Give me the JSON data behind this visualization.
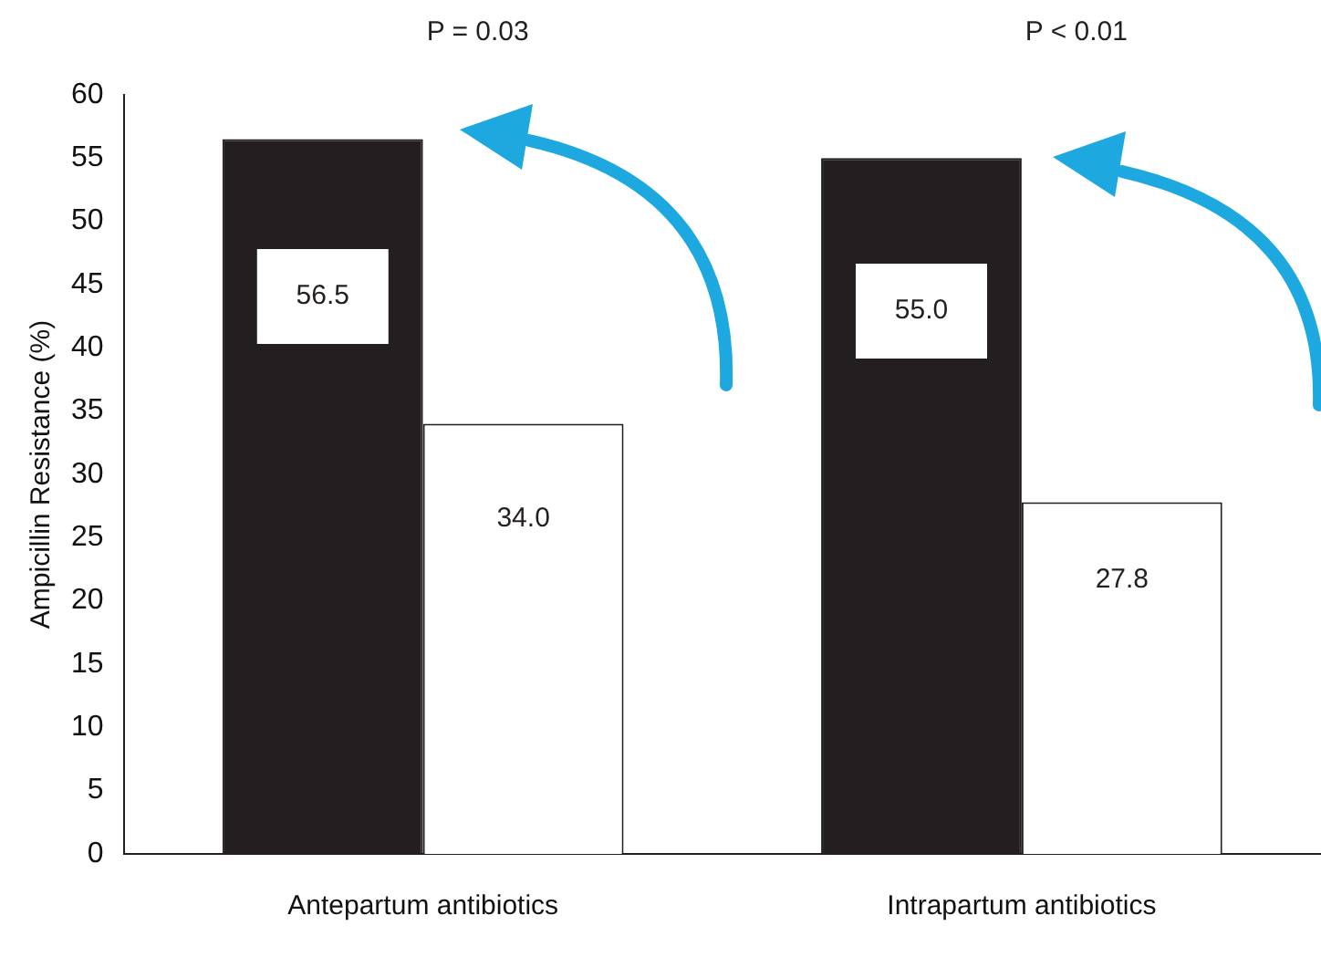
{
  "chart_data": {
    "type": "bar",
    "ylabel": "Ampicillin Resistance (%)",
    "categories": [
      "Antepartum antibiotics",
      "Intrapartum antibiotics"
    ],
    "series": [
      {
        "color": "#231f20",
        "values": [
          56.5,
          55.0
        ],
        "value_labels": [
          "56.5",
          "55.0"
        ]
      },
      {
        "color": "#ffffff",
        "values": [
          34.0,
          27.8
        ],
        "value_labels": [
          "34.0",
          "27.8"
        ]
      }
    ],
    "ylim": [
      0,
      60
    ],
    "yticks": [
      0,
      5,
      10,
      15,
      20,
      25,
      30,
      35,
      40,
      45,
      50,
      55,
      60
    ],
    "annotations": [
      "P = 0.03",
      "P < 0.01"
    ]
  }
}
